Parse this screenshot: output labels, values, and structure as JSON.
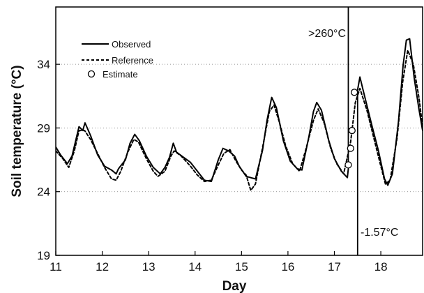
{
  "chart_data": {
    "type": "line",
    "title": "",
    "xlabel": "Day",
    "ylabel": "Soil temperature (°C)",
    "xlim": [
      11,
      18.9
    ],
    "ylim": [
      19,
      38.5
    ],
    "x_ticks": [
      "11",
      "12",
      "13",
      "14",
      "15",
      "16",
      "17",
      "18"
    ],
    "y_ticks": [
      "19",
      "24",
      "29",
      "34"
    ],
    "grid": "horizontal dotted lines at y ticks",
    "legend_placement": "top-left",
    "legend": [
      "Observed",
      "Reference",
      "Estimate"
    ],
    "annotations": [
      {
        "text": ">260°C",
        "near_x": 17.3,
        "near_y": 36.7
      },
      {
        "text": "-1.57°C",
        "near_x": 17.5,
        "near_y": 20.4
      }
    ],
    "vertical_lines": [
      {
        "x": 17.3,
        "y_range": [
          26.2,
          38.5
        ]
      },
      {
        "x": 17.5,
        "y_range": [
          19,
          32.0
        ]
      }
    ],
    "series": [
      {
        "name": "Observed",
        "style": "solid",
        "color": "#000000",
        "points": [
          [
            11.0,
            27.5
          ],
          [
            11.1,
            26.9
          ],
          [
            11.25,
            26.2
          ],
          [
            11.35,
            26.8
          ],
          [
            11.5,
            29.1
          ],
          [
            11.58,
            28.8
          ],
          [
            11.63,
            29.4
          ],
          [
            11.75,
            28.4
          ],
          [
            11.9,
            26.9
          ],
          [
            12.05,
            26.0
          ],
          [
            12.2,
            25.7
          ],
          [
            12.3,
            25.4
          ],
          [
            12.35,
            25.8
          ],
          [
            12.5,
            26.5
          ],
          [
            12.6,
            27.8
          ],
          [
            12.7,
            28.5
          ],
          [
            12.8,
            28.0
          ],
          [
            12.95,
            26.8
          ],
          [
            13.1,
            25.9
          ],
          [
            13.25,
            25.4
          ],
          [
            13.35,
            25.9
          ],
          [
            13.45,
            26.7
          ],
          [
            13.53,
            27.8
          ],
          [
            13.6,
            27.1
          ],
          [
            13.75,
            26.7
          ],
          [
            13.9,
            26.3
          ],
          [
            14.05,
            25.6
          ],
          [
            14.2,
            24.9
          ],
          [
            14.35,
            24.8
          ],
          [
            14.5,
            26.5
          ],
          [
            14.6,
            27.4
          ],
          [
            14.72,
            27.2
          ],
          [
            14.85,
            26.8
          ],
          [
            14.95,
            26.0
          ],
          [
            15.1,
            25.2
          ],
          [
            15.3,
            25.0
          ],
          [
            15.45,
            27.2
          ],
          [
            15.55,
            29.6
          ],
          [
            15.65,
            31.4
          ],
          [
            15.75,
            30.6
          ],
          [
            15.9,
            28.0
          ],
          [
            16.05,
            26.4
          ],
          [
            16.2,
            25.8
          ],
          [
            16.3,
            25.7
          ],
          [
            16.45,
            28.3
          ],
          [
            16.55,
            30.3
          ],
          [
            16.62,
            31.0
          ],
          [
            16.72,
            30.4
          ],
          [
            16.88,
            28.0
          ],
          [
            17.0,
            26.6
          ],
          [
            17.15,
            25.6
          ],
          [
            17.28,
            25.1
          ],
          [
            17.3,
            25.8
          ]
        ]
      },
      {
        "name": "Observed (after)",
        "style": "solid",
        "color": "#000000",
        "points": [
          [
            17.5,
            32.0
          ],
          [
            17.55,
            33.0
          ],
          [
            17.65,
            31.5
          ],
          [
            17.8,
            29.3
          ],
          [
            17.95,
            27.2
          ],
          [
            18.08,
            25.0
          ],
          [
            18.15,
            24.5
          ],
          [
            18.25,
            25.4
          ],
          [
            18.38,
            29.5
          ],
          [
            18.48,
            33.9
          ],
          [
            18.55,
            35.9
          ],
          [
            18.62,
            36.0
          ],
          [
            18.72,
            32.9
          ],
          [
            18.82,
            30.5
          ],
          [
            18.9,
            28.8
          ]
        ]
      },
      {
        "name": "Reference",
        "style": "dashed",
        "color": "#000000",
        "points": [
          [
            11.0,
            27.2
          ],
          [
            11.15,
            26.6
          ],
          [
            11.28,
            25.9
          ],
          [
            11.4,
            27.2
          ],
          [
            11.5,
            28.8
          ],
          [
            11.62,
            28.8
          ],
          [
            11.75,
            28.1
          ],
          [
            11.9,
            27.0
          ],
          [
            12.05,
            25.9
          ],
          [
            12.2,
            25.0
          ],
          [
            12.3,
            24.9
          ],
          [
            12.4,
            25.6
          ],
          [
            12.55,
            27.1
          ],
          [
            12.68,
            28.1
          ],
          [
            12.78,
            27.9
          ],
          [
            12.95,
            26.6
          ],
          [
            13.1,
            25.6
          ],
          [
            13.2,
            25.2
          ],
          [
            13.35,
            25.6
          ],
          [
            13.48,
            26.8
          ],
          [
            13.55,
            27.2
          ],
          [
            13.7,
            26.8
          ],
          [
            13.9,
            26.0
          ],
          [
            14.05,
            25.3
          ],
          [
            14.2,
            24.8
          ],
          [
            14.35,
            24.9
          ],
          [
            14.5,
            26.1
          ],
          [
            14.62,
            27.0
          ],
          [
            14.75,
            27.3
          ],
          [
            14.88,
            26.4
          ],
          [
            15.0,
            25.7
          ],
          [
            15.1,
            25.3
          ],
          [
            15.2,
            24.1
          ],
          [
            15.3,
            24.6
          ],
          [
            15.45,
            27.4
          ],
          [
            15.6,
            30.3
          ],
          [
            15.7,
            30.8
          ],
          [
            15.82,
            29.4
          ],
          [
            15.95,
            27.6
          ],
          [
            16.1,
            26.2
          ],
          [
            16.25,
            25.6
          ],
          [
            16.4,
            27.5
          ],
          [
            16.55,
            29.6
          ],
          [
            16.65,
            30.5
          ],
          [
            16.78,
            29.4
          ],
          [
            16.92,
            27.4
          ],
          [
            17.05,
            26.2
          ],
          [
            17.2,
            25.4
          ],
          [
            17.35,
            27.9
          ],
          [
            17.45,
            31.0
          ],
          [
            17.55,
            32.1
          ],
          [
            17.7,
            30.4
          ],
          [
            17.85,
            28.2
          ],
          [
            18.0,
            26.0
          ],
          [
            18.1,
            24.6
          ],
          [
            18.2,
            24.9
          ],
          [
            18.35,
            28.2
          ],
          [
            18.47,
            32.6
          ],
          [
            18.58,
            35.1
          ],
          [
            18.7,
            34.0
          ],
          [
            18.82,
            31.4
          ],
          [
            18.9,
            29.1
          ]
        ]
      },
      {
        "name": "Estimate",
        "style": "markers",
        "color": "#000000",
        "points": [
          [
            17.3,
            26.1
          ],
          [
            17.35,
            27.4
          ],
          [
            17.38,
            28.8
          ],
          [
            17.43,
            31.8
          ]
        ]
      }
    ]
  }
}
